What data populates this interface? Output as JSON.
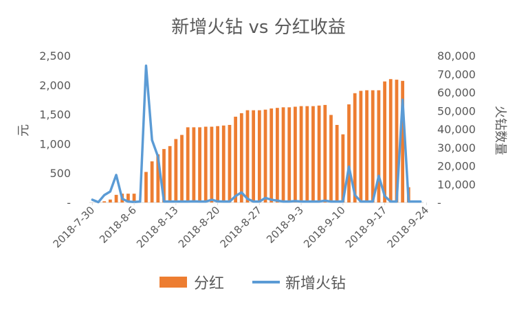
{
  "chart_data": {
    "type": "bar+line",
    "title": "新增火钻 vs 分红收益",
    "ylabel_left": "元",
    "ylabel_right": "火钻数量",
    "x_tick_labels": [
      "2018-7-30",
      "2018-8-6",
      "2018-8-13",
      "2018-8-20",
      "2018-8-27",
      "2018-9-3",
      "2018-9-10",
      "2018-9-17",
      "2018-9-24"
    ],
    "x_start_date": "2018-7-30",
    "left_axis": {
      "min": 0,
      "max": 2500,
      "ticks": [
        0,
        500,
        1000,
        1500,
        2000,
        2500
      ],
      "tick_labels": [
        "-",
        "500",
        "1,000",
        "1,500",
        "2,000",
        "2,500"
      ]
    },
    "right_axis": {
      "min": 0,
      "max": 80000,
      "ticks": [
        0,
        10000,
        20000,
        30000,
        40000,
        50000,
        60000,
        70000,
        80000
      ],
      "tick_labels": [
        "-",
        "10,000",
        "20,000",
        "30,000",
        "40,000",
        "50,000",
        "60,000",
        "70,000",
        "80,000"
      ]
    },
    "colors": {
      "bar": "#ed7d31",
      "line": "#5b9bd5",
      "axis": "#d9d9d9",
      "text": "#595959"
    },
    "series": [
      {
        "name": "分红",
        "type": "bar",
        "axis": "left",
        "values": [
          0,
          10,
          20,
          50,
          130,
          150,
          150,
          150,
          0,
          520,
          700,
          820,
          910,
          960,
          1080,
          1150,
          1280,
          1280,
          1280,
          1290,
          1290,
          1300,
          1310,
          1320,
          1460,
          1520,
          1570,
          1570,
          1570,
          1580,
          1600,
          1610,
          1620,
          1620,
          1630,
          1640,
          1640,
          1640,
          1650,
          1660,
          1490,
          1320,
          1160,
          1670,
          1860,
          1900,
          1910,
          1910,
          1910,
          2060,
          2100,
          2090,
          2070,
          260,
          0,
          0
        ]
      },
      {
        "name": "新增火钻",
        "type": "line",
        "axis": "right",
        "values": [
          1500,
          200,
          4000,
          6000,
          15000,
          2000,
          500,
          300,
          500,
          74500,
          34000,
          25000,
          500,
          500,
          500,
          500,
          500,
          600,
          500,
          500,
          1500,
          600,
          500,
          500,
          3500,
          5500,
          2000,
          500,
          500,
          2500,
          1500,
          1000,
          500,
          500,
          800,
          500,
          500,
          500,
          500,
          1000,
          500,
          500,
          500,
          19500,
          4000,
          500,
          500,
          500,
          14500,
          3500,
          500,
          500,
          56000,
          500,
          500,
          500
        ]
      }
    ],
    "legend": {
      "position": "bottom",
      "entries": [
        "分红",
        "新增火钻"
      ]
    }
  }
}
